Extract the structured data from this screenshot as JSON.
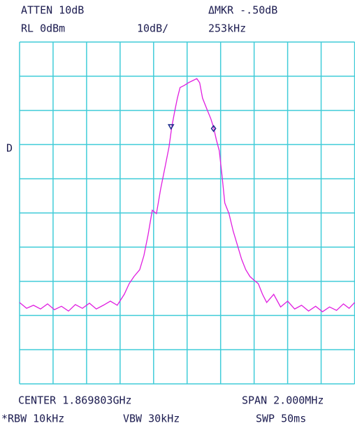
{
  "chart_data": {
    "type": "line",
    "header": {
      "atten": "ATTEN 10dB",
      "marker_delta": "ΔMKR -.50dB",
      "ref_level": "RL 0dBm",
      "scale": "10dB/",
      "marker_freq": "253kHz"
    },
    "side_label": "D",
    "footer": {
      "center": "CENTER 1.869803GHz",
      "span": "SPAN 2.000MHz",
      "rbw": "*RBW 10kHz",
      "vbw": "VBW 30kHz",
      "sweep": "SWP 50ms"
    },
    "xlim": [
      1.868803,
      1.870803
    ],
    "ylim": [
      -100,
      0
    ],
    "grid": true,
    "color": "#e01ee0",
    "grid_color": "#40ccd8",
    "marker_color": "#1a2a8a",
    "x": [
      1.868803,
      1.868845,
      1.868886,
      1.868928,
      1.86897,
      1.869011,
      1.869053,
      1.869095,
      1.869136,
      1.869178,
      1.86922,
      1.869261,
      1.869303,
      1.869345,
      1.869386,
      1.869428,
      1.869457,
      1.869486,
      1.86952,
      1.869545,
      1.86957,
      1.869595,
      1.86962,
      1.869645,
      1.86967,
      1.869695,
      1.869711,
      1.869728,
      1.869745,
      1.869761,
      1.869786,
      1.869811,
      1.869836,
      1.869861,
      1.869878,
      1.869895,
      1.86992,
      1.869945,
      1.869961,
      1.869978,
      1.869995,
      1.870011,
      1.870028,
      1.870053,
      1.870078,
      1.870103,
      1.870128,
      1.870153,
      1.870178,
      1.870203,
      1.870228,
      1.870253,
      1.870278,
      1.87032,
      1.870361,
      1.870403,
      1.870445,
      1.870486,
      1.870528,
      1.87057,
      1.870611,
      1.870653,
      1.870695,
      1.870736,
      1.87077,
      1.870803
    ],
    "values": [
      -76.2,
      -77.9,
      -77.0,
      -78.1,
      -76.6,
      -78.3,
      -77.3,
      -78.7,
      -76.8,
      -77.9,
      -76.4,
      -78.1,
      -77.0,
      -75.8,
      -77.0,
      -73.8,
      -70.7,
      -68.6,
      -66.6,
      -62.5,
      -56.4,
      -49.2,
      -50.2,
      -43.0,
      -36.9,
      -30.7,
      -25.0,
      -20.5,
      -16.4,
      -13.3,
      -12.7,
      -11.9,
      -11.3,
      -10.7,
      -11.9,
      -16.4,
      -19.5,
      -22.5,
      -25.0,
      -28.7,
      -31.8,
      -38.9,
      -47.1,
      -50.2,
      -55.3,
      -59.4,
      -63.5,
      -66.6,
      -68.6,
      -69.7,
      -70.7,
      -73.8,
      -76.2,
      -73.8,
      -77.5,
      -75.8,
      -78.1,
      -77.0,
      -78.7,
      -77.3,
      -78.9,
      -77.5,
      -78.5,
      -76.6,
      -77.9,
      -76.2
    ],
    "markers": [
      {
        "x": 1.869707,
        "y": -24.8
      },
      {
        "x": 1.869961,
        "y": -25.3
      }
    ]
  }
}
